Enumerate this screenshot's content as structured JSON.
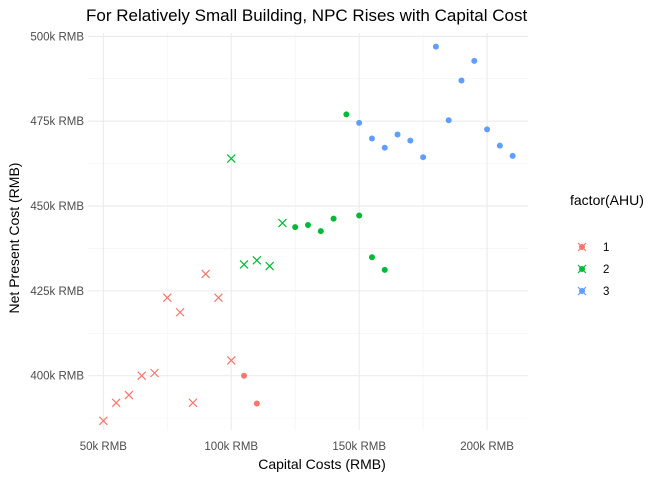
{
  "chart_data": {
    "type": "scatter",
    "title": "For Relatively Small Building, NPC Rises with Capital Cost",
    "xlabel": "Capital Costs (RMB)",
    "ylabel": "Net Present Cost (RMB)",
    "xlim": [
      44000,
      216000
    ],
    "ylim": [
      384000,
      501000
    ],
    "x_ticks": [
      50000,
      100000,
      150000,
      200000
    ],
    "x_tick_labels": [
      "50k RMB",
      "100k RMB",
      "150k RMB",
      "200k RMB"
    ],
    "y_ticks": [
      400000,
      425000,
      450000,
      475000,
      500000
    ],
    "y_tick_labels": [
      "400k RMB",
      "425k RMB",
      "450k RMB",
      "475k RMB",
      "500k RMB"
    ],
    "grid": true,
    "legend": {
      "title": "factor(AHU)",
      "position": "right"
    },
    "series": [
      {
        "name": "1",
        "color": "#F8766D",
        "points": [
          {
            "x": 50000,
            "y": 386700,
            "shape": "cross"
          },
          {
            "x": 55000,
            "y": 392000,
            "shape": "cross"
          },
          {
            "x": 60000,
            "y": 394300,
            "shape": "cross"
          },
          {
            "x": 65000,
            "y": 400000,
            "shape": "cross"
          },
          {
            "x": 70000,
            "y": 400800,
            "shape": "cross"
          },
          {
            "x": 75000,
            "y": 423000,
            "shape": "cross"
          },
          {
            "x": 80000,
            "y": 418700,
            "shape": "cross"
          },
          {
            "x": 85000,
            "y": 392000,
            "shape": "cross"
          },
          {
            "x": 90000,
            "y": 430000,
            "shape": "cross"
          },
          {
            "x": 95000,
            "y": 423000,
            "shape": "cross"
          },
          {
            "x": 100000,
            "y": 404500,
            "shape": "cross"
          },
          {
            "x": 105000,
            "y": 400000,
            "shape": "circle"
          },
          {
            "x": 110000,
            "y": 391800,
            "shape": "circle"
          }
        ]
      },
      {
        "name": "2",
        "color": "#00BA38",
        "points": [
          {
            "x": 100000,
            "y": 464000,
            "shape": "cross"
          },
          {
            "x": 105000,
            "y": 432800,
            "shape": "cross"
          },
          {
            "x": 110000,
            "y": 434000,
            "shape": "cross"
          },
          {
            "x": 115000,
            "y": 432300,
            "shape": "cross"
          },
          {
            "x": 120000,
            "y": 445000,
            "shape": "cross"
          },
          {
            "x": 125000,
            "y": 443800,
            "shape": "circle"
          },
          {
            "x": 130000,
            "y": 444400,
            "shape": "circle"
          },
          {
            "x": 135000,
            "y": 442600,
            "shape": "circle"
          },
          {
            "x": 140000,
            "y": 446300,
            "shape": "circle"
          },
          {
            "x": 145000,
            "y": 477000,
            "shape": "circle"
          },
          {
            "x": 150000,
            "y": 447200,
            "shape": "circle"
          },
          {
            "x": 155000,
            "y": 434900,
            "shape": "circle"
          },
          {
            "x": 160000,
            "y": 431200,
            "shape": "circle"
          }
        ]
      },
      {
        "name": "3",
        "color": "#619CFF",
        "points": [
          {
            "x": 150000,
            "y": 474500,
            "shape": "circle"
          },
          {
            "x": 155000,
            "y": 469900,
            "shape": "circle"
          },
          {
            "x": 160000,
            "y": 467200,
            "shape": "circle"
          },
          {
            "x": 165000,
            "y": 471100,
            "shape": "circle"
          },
          {
            "x": 170000,
            "y": 469300,
            "shape": "circle"
          },
          {
            "x": 175000,
            "y": 464400,
            "shape": "circle"
          },
          {
            "x": 180000,
            "y": 497000,
            "shape": "circle"
          },
          {
            "x": 185000,
            "y": 475300,
            "shape": "circle"
          },
          {
            "x": 190000,
            "y": 487000,
            "shape": "circle"
          },
          {
            "x": 195000,
            "y": 492800,
            "shape": "circle"
          },
          {
            "x": 200000,
            "y": 472600,
            "shape": "circle"
          },
          {
            "x": 205000,
            "y": 467800,
            "shape": "circle"
          },
          {
            "x": 210000,
            "y": 464800,
            "shape": "circle"
          }
        ]
      }
    ]
  }
}
